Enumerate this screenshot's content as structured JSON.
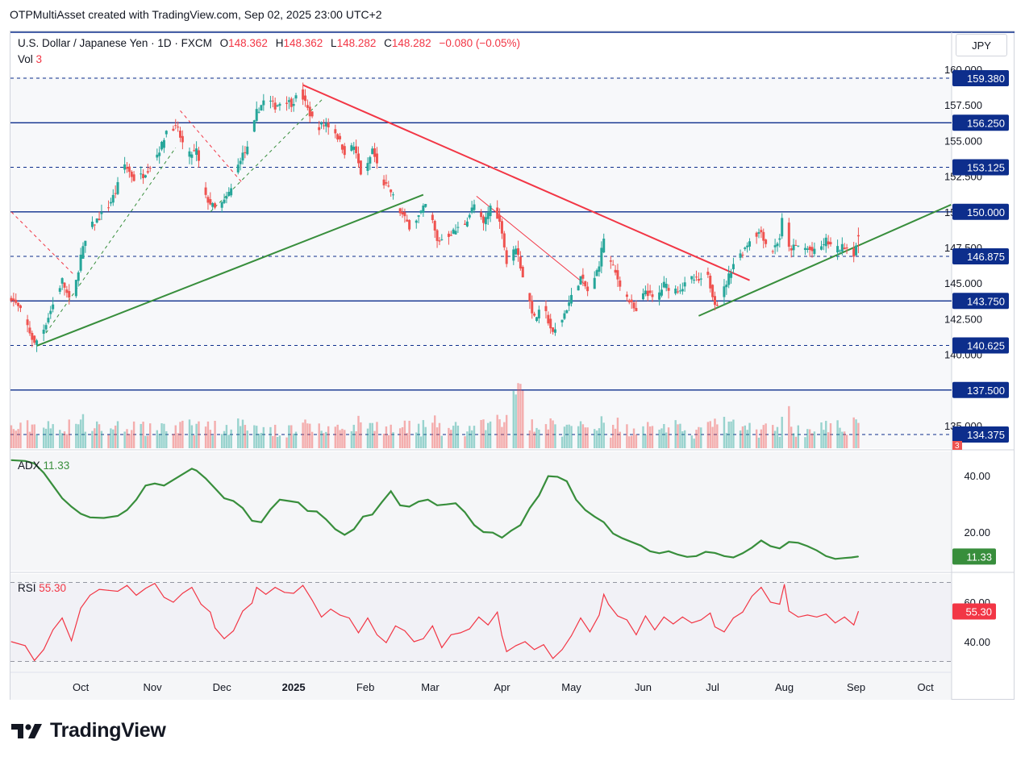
{
  "header": {
    "title": "OTPMultiAsset created with TradingView.com, Sep 02, 2025 23:00 UTC+2"
  },
  "legend": {
    "symbol": "U.S. Dollar / Japanese Yen · 1D · FXCM",
    "open_label": "O",
    "open": "148.362",
    "high_label": "H",
    "high": "148.362",
    "low_label": "L",
    "low": "148.282",
    "close_label": "C",
    "close": "148.282",
    "change": "−0.080 (−0.05%)",
    "vol_label": "Vol",
    "vol": "3",
    "adx_label": "ADX",
    "adx": "11.33",
    "rsi_label": "RSI",
    "rsi": "55.30"
  },
  "unit": "JPY",
  "branding": {
    "logo_text": "TradingView"
  },
  "colors": {
    "up": "#26a69a",
    "down": "#ef5350",
    "level": "#0d2e8c",
    "trend_up": "#388e3c",
    "trend_down": "#f23645",
    "adx": "#388e3c",
    "rsi": "#f23645"
  },
  "chart_data": [
    {
      "type": "candlestick",
      "symbol": "USDJPY",
      "ylim": [
        133.5,
        161.0
      ],
      "y_ticks": [
        "160.000",
        "157.500",
        "155.000",
        "152.500",
        "150.000",
        "147.500",
        "145.000",
        "142.500",
        "140.000",
        "135.000"
      ],
      "x_labels": [
        {
          "label": "Oct",
          "day": 30
        },
        {
          "label": "Nov",
          "day": 61
        },
        {
          "label": "Dec",
          "day": 91
        },
        {
          "label": "2025",
          "day": 122
        },
        {
          "label": "Feb",
          "day": 153
        },
        {
          "label": "Mar",
          "day": 181
        },
        {
          "label": "Apr",
          "day": 212
        },
        {
          "label": "May",
          "day": 242
        },
        {
          "label": "Jun",
          "day": 273
        },
        {
          "label": "Jul",
          "day": 303
        },
        {
          "label": "Aug",
          "day": 334
        },
        {
          "label": "Sep",
          "day": 365
        },
        {
          "label": "Oct",
          "day": 395
        }
      ],
      "levels": [
        {
          "value": 159.38,
          "label": "159.380",
          "style": "dashed"
        },
        {
          "value": 156.25,
          "label": "156.250",
          "style": "solid"
        },
        {
          "value": 153.125,
          "label": "153.125",
          "style": "dashed"
        },
        {
          "value": 150.0,
          "label": "150.000",
          "style": "solid"
        },
        {
          "value": 146.875,
          "label": "146.875",
          "style": "dashed"
        },
        {
          "value": 143.75,
          "label": "143.750",
          "style": "solid"
        },
        {
          "value": 140.625,
          "label": "140.625",
          "style": "dashed"
        },
        {
          "value": 137.5,
          "label": "137.500",
          "style": "solid"
        },
        {
          "value": 134.375,
          "label": "134.375",
          "style": "dashed"
        }
      ],
      "close_anchors": [
        [
          0,
          144.0
        ],
        [
          5,
          142.8
        ],
        [
          10,
          140.7
        ],
        [
          14,
          141.8
        ],
        [
          18,
          143.5
        ],
        [
          22,
          145.2
        ],
        [
          26,
          143.3
        ],
        [
          30,
          146.9
        ],
        [
          34,
          148.9
        ],
        [
          38,
          149.6
        ],
        [
          42,
          150.4
        ],
        [
          45,
          151.4
        ],
        [
          49,
          153.3
        ],
        [
          53,
          152.3
        ],
        [
          57,
          152.6
        ],
        [
          61,
          153.4
        ],
        [
          65,
          154.7
        ],
        [
          68,
          156.2
        ],
        [
          72,
          155.7
        ],
        [
          76,
          153.9
        ],
        [
          80,
          154.3
        ],
        [
          84,
          151.0
        ],
        [
          88,
          150.2
        ],
        [
          92,
          150.7
        ],
        [
          95,
          151.6
        ],
        [
          99,
          153.8
        ],
        [
          103,
          154.6
        ],
        [
          106,
          157.0
        ],
        [
          110,
          158.0
        ],
        [
          114,
          157.4
        ],
        [
          118,
          157.9
        ],
        [
          121,
          157.6
        ],
        [
          125,
          158.4
        ],
        [
          128,
          157.2
        ],
        [
          132,
          155.9
        ],
        [
          136,
          156.2
        ],
        [
          140,
          155.6
        ],
        [
          144,
          154.2
        ],
        [
          148,
          154.6
        ],
        [
          152,
          152.1
        ],
        [
          156,
          154.4
        ],
        [
          160,
          152.2
        ],
        [
          164,
          151.4
        ],
        [
          168,
          150.0
        ],
        [
          172,
          149.0
        ],
        [
          176,
          149.7
        ],
        [
          180,
          150.7
        ],
        [
          184,
          147.9
        ],
        [
          188,
          148.3
        ],
        [
          192,
          148.7
        ],
        [
          196,
          149.2
        ],
        [
          200,
          150.5
        ],
        [
          204,
          149.1
        ],
        [
          208,
          150.8
        ],
        [
          212,
          148.7
        ],
        [
          214,
          146.4
        ],
        [
          216,
          146.8
        ],
        [
          218,
          147.6
        ],
        [
          222,
          144.8
        ],
        [
          226,
          142.5
        ],
        [
          230,
          143.3
        ],
        [
          234,
          141.4
        ],
        [
          238,
          142.5
        ],
        [
          242,
          144.0
        ],
        [
          246,
          145.4
        ],
        [
          250,
          144.1
        ],
        [
          254,
          146.4
        ],
        [
          256,
          148.2
        ],
        [
          258,
          146.8
        ],
        [
          262,
          145.3
        ],
        [
          266,
          144.0
        ],
        [
          270,
          142.9
        ],
        [
          274,
          144.5
        ],
        [
          278,
          143.7
        ],
        [
          282,
          144.9
        ],
        [
          286,
          144.5
        ],
        [
          290,
          144.7
        ],
        [
          294,
          145.3
        ],
        [
          298,
          145.1
        ],
        [
          300,
          146.0
        ],
        [
          302,
          144.8
        ],
        [
          304,
          143.7
        ],
        [
          306,
          143.4
        ],
        [
          308,
          144.6
        ],
        [
          312,
          146.4
        ],
        [
          316,
          147.2
        ],
        [
          320,
          148.3
        ],
        [
          324,
          148.6
        ],
        [
          328,
          147.0
        ],
        [
          332,
          148.2
        ],
        [
          334,
          150.6
        ],
        [
          336,
          147.4
        ],
        [
          340,
          147.6
        ],
        [
          344,
          147.4
        ],
        [
          348,
          147.1
        ],
        [
          352,
          148.0
        ],
        [
          356,
          147.3
        ],
        [
          360,
          147.6
        ],
        [
          364,
          147.1
        ],
        [
          366,
          148.28
        ]
      ],
      "volume_ylim": [
        0,
        9
      ]
    },
    {
      "type": "line",
      "name": "ADX",
      "ylim": [
        8,
        48
      ],
      "y_ticks": [
        "40.00",
        "20.00"
      ],
      "last": "11.33",
      "points": [
        [
          0,
          45.5
        ],
        [
          6,
          45.2
        ],
        [
          10,
          44.3
        ],
        [
          14,
          41.0
        ],
        [
          18,
          36.5
        ],
        [
          22,
          32.0
        ],
        [
          26,
          29.0
        ],
        [
          30,
          26.5
        ],
        [
          34,
          25.2
        ],
        [
          40,
          25.0
        ],
        [
          46,
          25.7
        ],
        [
          50,
          27.8
        ],
        [
          54,
          31.5
        ],
        [
          58,
          36.5
        ],
        [
          62,
          37.2
        ],
        [
          66,
          36.5
        ],
        [
          70,
          38.5
        ],
        [
          74,
          40.5
        ],
        [
          78,
          42.5
        ],
        [
          80,
          41.8
        ],
        [
          84,
          39.0
        ],
        [
          88,
          35.5
        ],
        [
          92,
          32.0
        ],
        [
          96,
          31.0
        ],
        [
          100,
          28.5
        ],
        [
          104,
          24.0
        ],
        [
          108,
          23.5
        ],
        [
          112,
          28.0
        ],
        [
          116,
          31.5
        ],
        [
          120,
          31.0
        ],
        [
          124,
          30.5
        ],
        [
          128,
          27.5
        ],
        [
          132,
          27.3
        ],
        [
          136,
          24.5
        ],
        [
          140,
          21.0
        ],
        [
          144,
          19.0
        ],
        [
          148,
          21.0
        ],
        [
          152,
          25.5
        ],
        [
          156,
          26.2
        ],
        [
          160,
          30.5
        ],
        [
          164,
          34.5
        ],
        [
          168,
          29.5
        ],
        [
          172,
          29.0
        ],
        [
          176,
          30.8
        ],
        [
          180,
          31.5
        ],
        [
          184,
          29.5
        ],
        [
          188,
          29.8
        ],
        [
          192,
          30.2
        ],
        [
          196,
          27.0
        ],
        [
          200,
          22.5
        ],
        [
          204,
          20.0
        ],
        [
          208,
          19.8
        ],
        [
          212,
          18.0
        ],
        [
          216,
          20.5
        ],
        [
          220,
          22.5
        ],
        [
          224,
          28.5
        ],
        [
          228,
          33.0
        ],
        [
          232,
          39.8
        ],
        [
          236,
          39.6
        ],
        [
          240,
          38.0
        ],
        [
          244,
          31.5
        ],
        [
          248,
          27.8
        ],
        [
          252,
          25.5
        ],
        [
          256,
          23.5
        ],
        [
          260,
          19.5
        ],
        [
          264,
          17.8
        ],
        [
          268,
          16.5
        ],
        [
          272,
          15.2
        ],
        [
          276,
          13.2
        ],
        [
          280,
          12.5
        ],
        [
          284,
          13.2
        ],
        [
          288,
          12.0
        ],
        [
          292,
          11.2
        ],
        [
          296,
          11.5
        ],
        [
          300,
          13.0
        ],
        [
          304,
          12.6
        ],
        [
          308,
          11.5
        ],
        [
          312,
          11.0
        ],
        [
          316,
          12.5
        ],
        [
          320,
          14.5
        ],
        [
          324,
          17.0
        ],
        [
          328,
          15.0
        ],
        [
          332,
          14.2
        ],
        [
          336,
          16.5
        ],
        [
          340,
          16.2
        ],
        [
          344,
          15.0
        ],
        [
          348,
          13.5
        ],
        [
          352,
          11.5
        ],
        [
          356,
          10.5
        ],
        [
          360,
          10.8
        ],
        [
          363,
          11.0
        ],
        [
          366,
          11.33
        ]
      ]
    },
    {
      "type": "line",
      "name": "RSI",
      "ylim": [
        25,
        75
      ],
      "y_ticks": [
        "60.00",
        "40.00"
      ],
      "last": "55.30",
      "points": [
        [
          0,
          40.0
        ],
        [
          6,
          38.0
        ],
        [
          10,
          30.5
        ],
        [
          14,
          36.0
        ],
        [
          18,
          46.0
        ],
        [
          22,
          52.0
        ],
        [
          26,
          40.5
        ],
        [
          30,
          57.0
        ],
        [
          34,
          63.5
        ],
        [
          38,
          66.5
        ],
        [
          42,
          66.0
        ],
        [
          46,
          65.5
        ],
        [
          50,
          68.5
        ],
        [
          54,
          63.5
        ],
        [
          58,
          67.0
        ],
        [
          62,
          69.5
        ],
        [
          66,
          62.5
        ],
        [
          70,
          60.0
        ],
        [
          74,
          64.5
        ],
        [
          78,
          67.5
        ],
        [
          82,
          59.0
        ],
        [
          86,
          55.0
        ],
        [
          88,
          47.0
        ],
        [
          92,
          41.5
        ],
        [
          96,
          45.5
        ],
        [
          100,
          55.5
        ],
        [
          104,
          59.5
        ],
        [
          106,
          67.5
        ],
        [
          110,
          64.0
        ],
        [
          114,
          67.5
        ],
        [
          118,
          65.0
        ],
        [
          122,
          64.5
        ],
        [
          126,
          68.5
        ],
        [
          130,
          61.0
        ],
        [
          134,
          52.5
        ],
        [
          138,
          56.5
        ],
        [
          142,
          53.5
        ],
        [
          146,
          52.0
        ],
        [
          150,
          44.5
        ],
        [
          154,
          52.0
        ],
        [
          158,
          43.5
        ],
        [
          162,
          39.5
        ],
        [
          166,
          48.0
        ],
        [
          170,
          45.5
        ],
        [
          174,
          40.0
        ],
        [
          178,
          41.5
        ],
        [
          182,
          48.0
        ],
        [
          186,
          37.0
        ],
        [
          190,
          43.5
        ],
        [
          194,
          44.5
        ],
        [
          198,
          46.5
        ],
        [
          202,
          52.5
        ],
        [
          206,
          48.5
        ],
        [
          210,
          55.0
        ],
        [
          212,
          43.0
        ],
        [
          214,
          35.0
        ],
        [
          218,
          38.0
        ],
        [
          222,
          40.0
        ],
        [
          226,
          36.0
        ],
        [
          230,
          38.5
        ],
        [
          234,
          31.5
        ],
        [
          238,
          36.0
        ],
        [
          242,
          43.0
        ],
        [
          246,
          52.0
        ],
        [
          250,
          45.0
        ],
        [
          254,
          53.5
        ],
        [
          256,
          64.0
        ],
        [
          258,
          59.0
        ],
        [
          262,
          53.0
        ],
        [
          266,
          51.0
        ],
        [
          270,
          43.5
        ],
        [
          274,
          53.0
        ],
        [
          278,
          46.0
        ],
        [
          282,
          52.5
        ],
        [
          286,
          49.0
        ],
        [
          290,
          52.5
        ],
        [
          294,
          49.5
        ],
        [
          298,
          51.0
        ],
        [
          302,
          54.5
        ],
        [
          304,
          47.5
        ],
        [
          308,
          45.0
        ],
        [
          312,
          52.0
        ],
        [
          316,
          55.0
        ],
        [
          320,
          63.0
        ],
        [
          324,
          67.5
        ],
        [
          328,
          60.0
        ],
        [
          332,
          59.0
        ],
        [
          334,
          69.0
        ],
        [
          336,
          55.5
        ],
        [
          340,
          52.5
        ],
        [
          344,
          53.5
        ],
        [
          348,
          52.5
        ],
        [
          352,
          54.0
        ],
        [
          356,
          49.5
        ],
        [
          360,
          52.5
        ],
        [
          364,
          48.5
        ],
        [
          366,
          55.3
        ]
      ]
    }
  ]
}
